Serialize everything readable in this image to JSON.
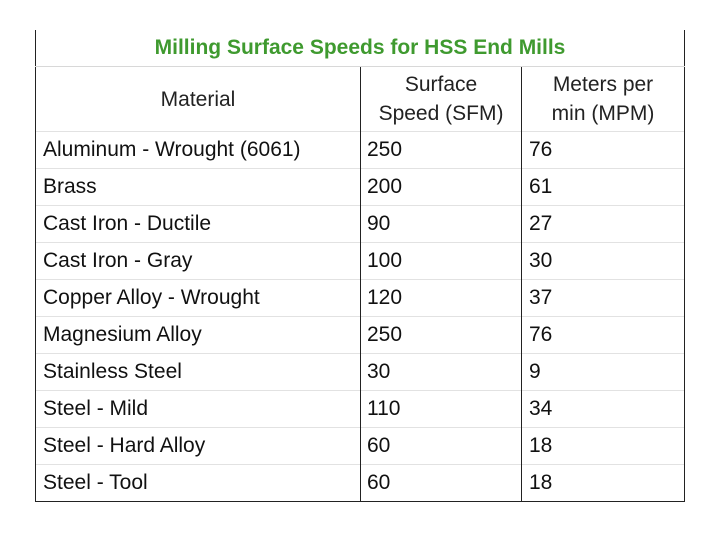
{
  "table": {
    "title": "Milling Surface Speeds for HSS End Mills",
    "headers": {
      "material": "Material",
      "sfm_line1": "Surface",
      "sfm_line2": "Speed (SFM)",
      "mpm_line1": "Meters per",
      "mpm_line2": "min (MPM)"
    },
    "rows": [
      {
        "material": "Aluminum - Wrought (6061)",
        "sfm": "250",
        "mpm": "76"
      },
      {
        "material": "Brass",
        "sfm": "200",
        "mpm": "61"
      },
      {
        "material": "Cast Iron - Ductile",
        "sfm": "90",
        "mpm": "27"
      },
      {
        "material": "Cast Iron - Gray",
        "sfm": "100",
        "mpm": "30"
      },
      {
        "material": "Copper Alloy - Wrought",
        "sfm": "120",
        "mpm": "37"
      },
      {
        "material": "Magnesium Alloy",
        "sfm": "250",
        "mpm": "76"
      },
      {
        "material": "Stainless Steel",
        "sfm": "30",
        "mpm": "9"
      },
      {
        "material": "Steel - Mild",
        "sfm": "110",
        "mpm": "34"
      },
      {
        "material": "Steel - Hard Alloy",
        "sfm": "60",
        "mpm": "18"
      },
      {
        "material": "Steel - Tool",
        "sfm": "60",
        "mpm": "18"
      }
    ]
  },
  "colors": {
    "title": "#3f9a2f",
    "text": "#111111",
    "border": "#222222"
  }
}
